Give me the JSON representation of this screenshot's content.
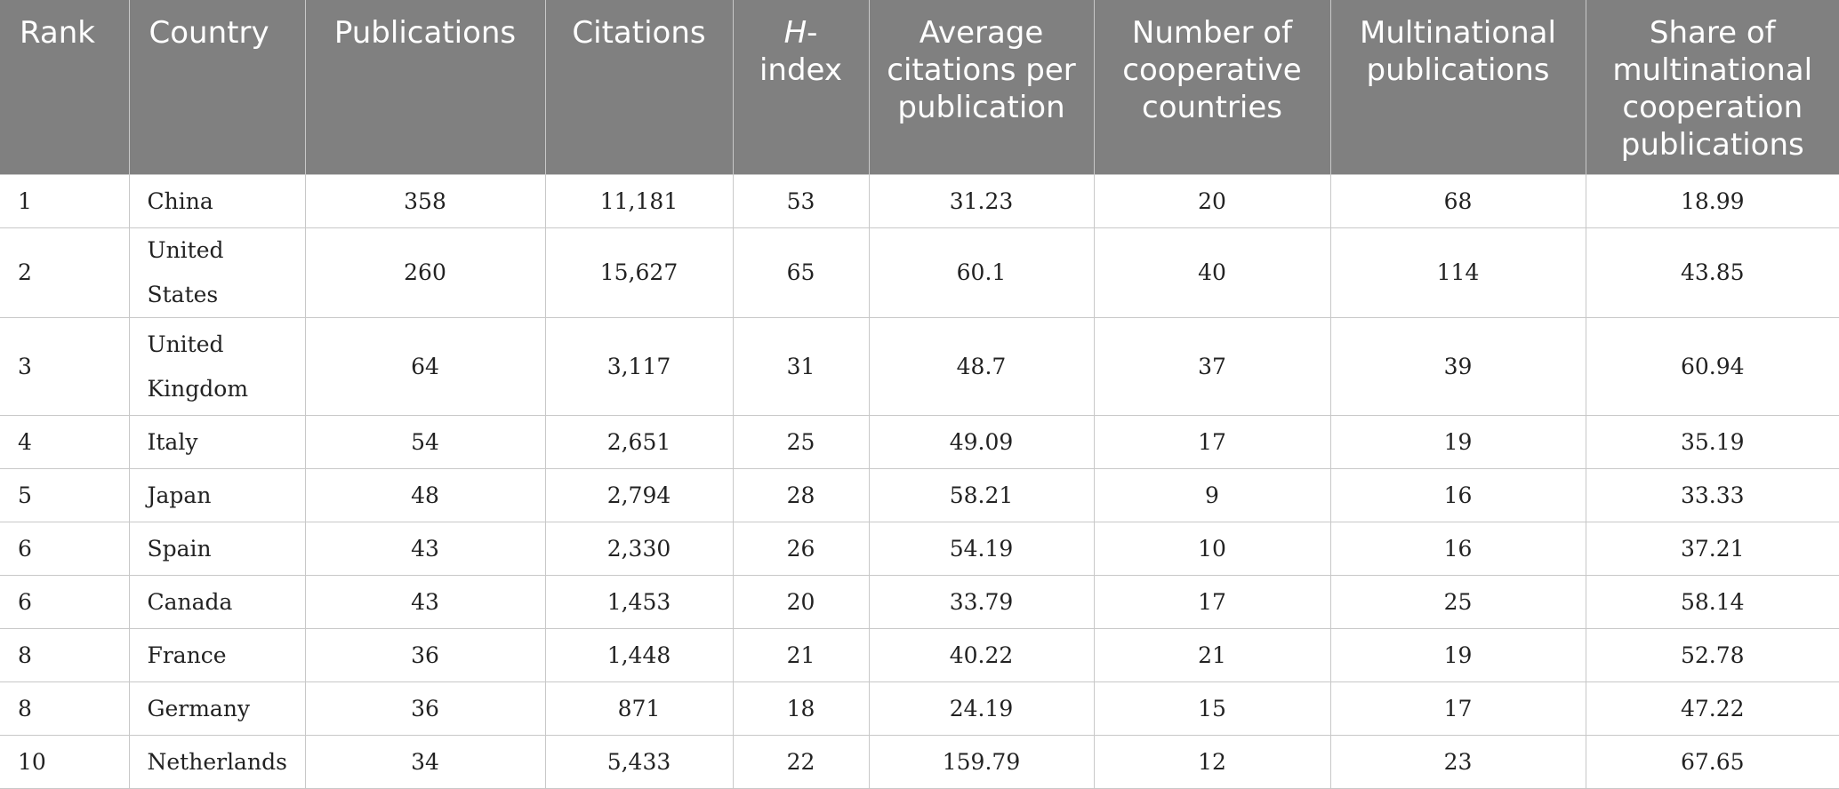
{
  "header": {
    "rank": "Rank",
    "country": "Country",
    "publications": "Publications",
    "citations": "Citations",
    "h_index_prefix": "H",
    "h_index_suffix": "-index",
    "average_citations": "Average citations per publication",
    "cooperative_countries": "Number of cooperative countries",
    "multinational_publications": "Multinational publications",
    "share_multinational": "Share of multinational cooperation publications"
  },
  "rows": [
    {
      "rank": "1",
      "country": "China",
      "publications": "358",
      "citations": "11,181",
      "h_index": "53",
      "avg": "31.23",
      "coop": "20",
      "multi": "68",
      "share": "18.99"
    },
    {
      "rank": "2",
      "country": "United States",
      "publications": "260",
      "citations": "15,627",
      "h_index": "65",
      "avg": "60.1",
      "coop": "40",
      "multi": "114",
      "share": "43.85"
    },
    {
      "rank": "3",
      "country": "United Kingdom",
      "publications": "64",
      "citations": "3,117",
      "h_index": "31",
      "avg": "48.7",
      "coop": "37",
      "multi": "39",
      "share": "60.94"
    },
    {
      "rank": "4",
      "country": "Italy",
      "publications": "54",
      "citations": "2,651",
      "h_index": "25",
      "avg": "49.09",
      "coop": "17",
      "multi": "19",
      "share": "35.19"
    },
    {
      "rank": "5",
      "country": "Japan",
      "publications": "48",
      "citations": "2,794",
      "h_index": "28",
      "avg": "58.21",
      "coop": "9",
      "multi": "16",
      "share": "33.33"
    },
    {
      "rank": "6",
      "country": "Spain",
      "publications": "43",
      "citations": "2,330",
      "h_index": "26",
      "avg": "54.19",
      "coop": "10",
      "multi": "16",
      "share": "37.21"
    },
    {
      "rank": "6",
      "country": "Canada",
      "publications": "43",
      "citations": "1,453",
      "h_index": "20",
      "avg": "33.79",
      "coop": "17",
      "multi": "25",
      "share": "58.14"
    },
    {
      "rank": "8",
      "country": "France",
      "publications": "36",
      "citations": "1,448",
      "h_index": "21",
      "avg": "40.22",
      "coop": "21",
      "multi": "19",
      "share": "52.78"
    },
    {
      "rank": "8",
      "country": "Germany",
      "publications": "36",
      "citations": "871",
      "h_index": "18",
      "avg": "24.19",
      "coop": "15",
      "multi": "17",
      "share": "47.22"
    },
    {
      "rank": "10",
      "country": "Netherlands",
      "publications": "34",
      "citations": "5,433",
      "h_index": "22",
      "avg": "159.79",
      "coop": "12",
      "multi": "23",
      "share": "67.65"
    }
  ]
}
